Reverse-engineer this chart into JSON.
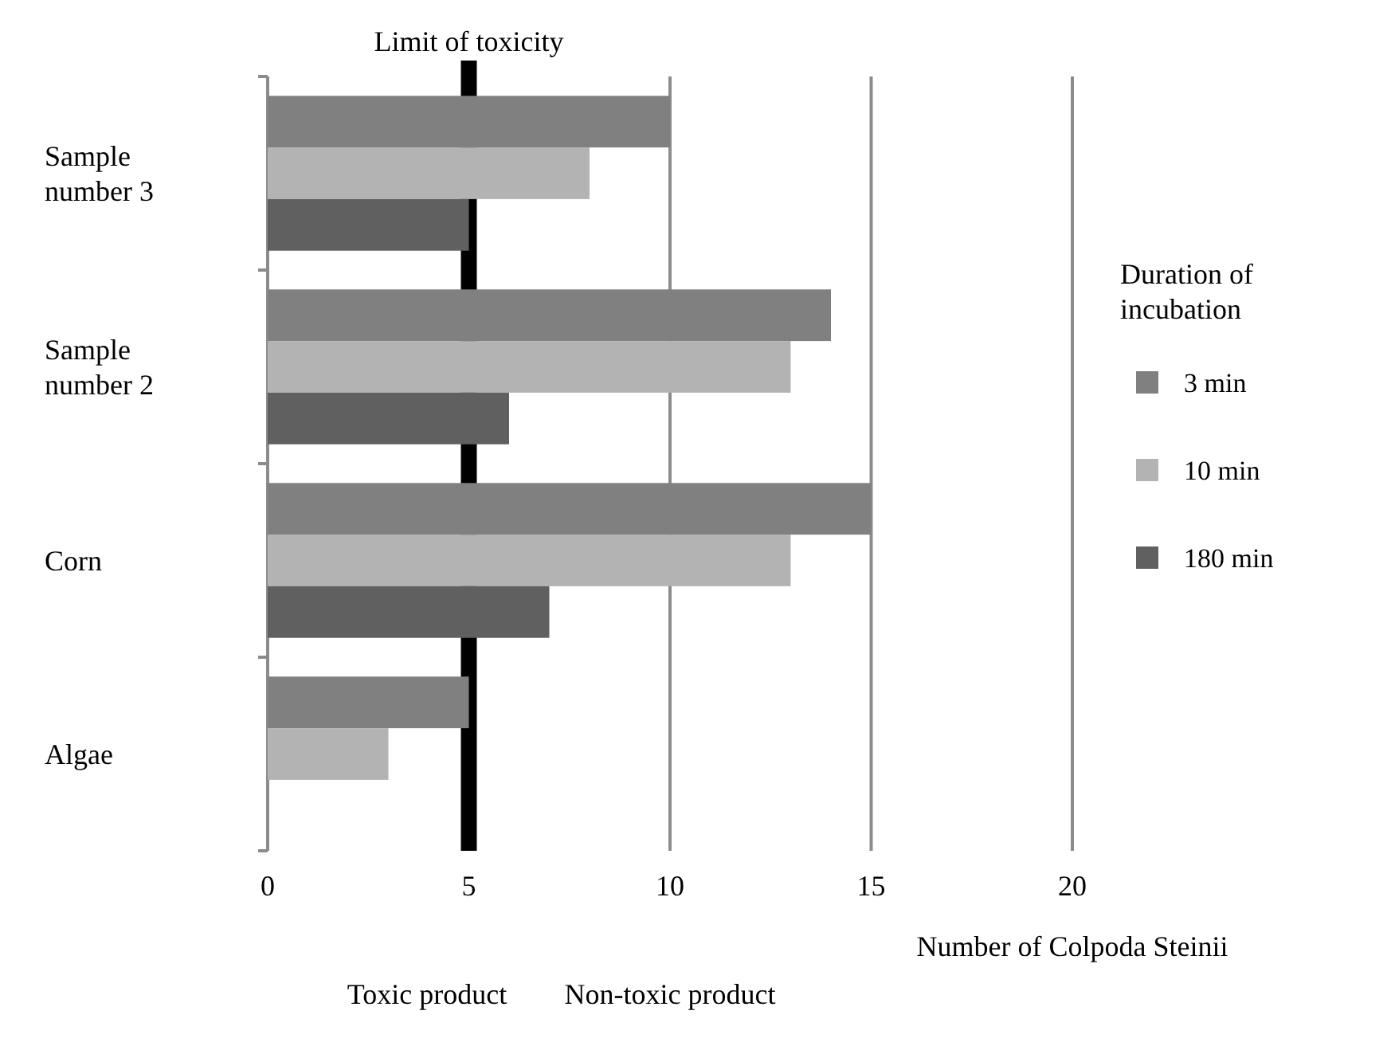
{
  "chart_data": {
    "type": "bar",
    "orientation": "horizontal",
    "categories": [
      "Sample number 3",
      "Sample number 2",
      "Corn",
      "Algae"
    ],
    "series": [
      {
        "name": "3 min",
        "color": "#808080",
        "values": [
          10,
          14,
          15,
          5
        ]
      },
      {
        "name": "10 min",
        "color": "#b3b3b3",
        "values": [
          8,
          13,
          13,
          3
        ]
      },
      {
        "name": "180 min",
        "color": "#606060",
        "values": [
          5,
          6,
          7,
          null
        ]
      }
    ],
    "xlim": [
      0,
      20
    ],
    "xticks": [
      0,
      5,
      10,
      15,
      20
    ],
    "xlabel": "Number of Colpoda Steinii",
    "legend_title": "Duration of incubation",
    "legend": "right",
    "grid": "x",
    "ref_lines": [
      {
        "axis": "x",
        "value": 5,
        "label": "Limit of toxicity",
        "color": "#000000"
      }
    ],
    "annotations": [
      "Toxic product",
      "Non-toxic product"
    ]
  }
}
